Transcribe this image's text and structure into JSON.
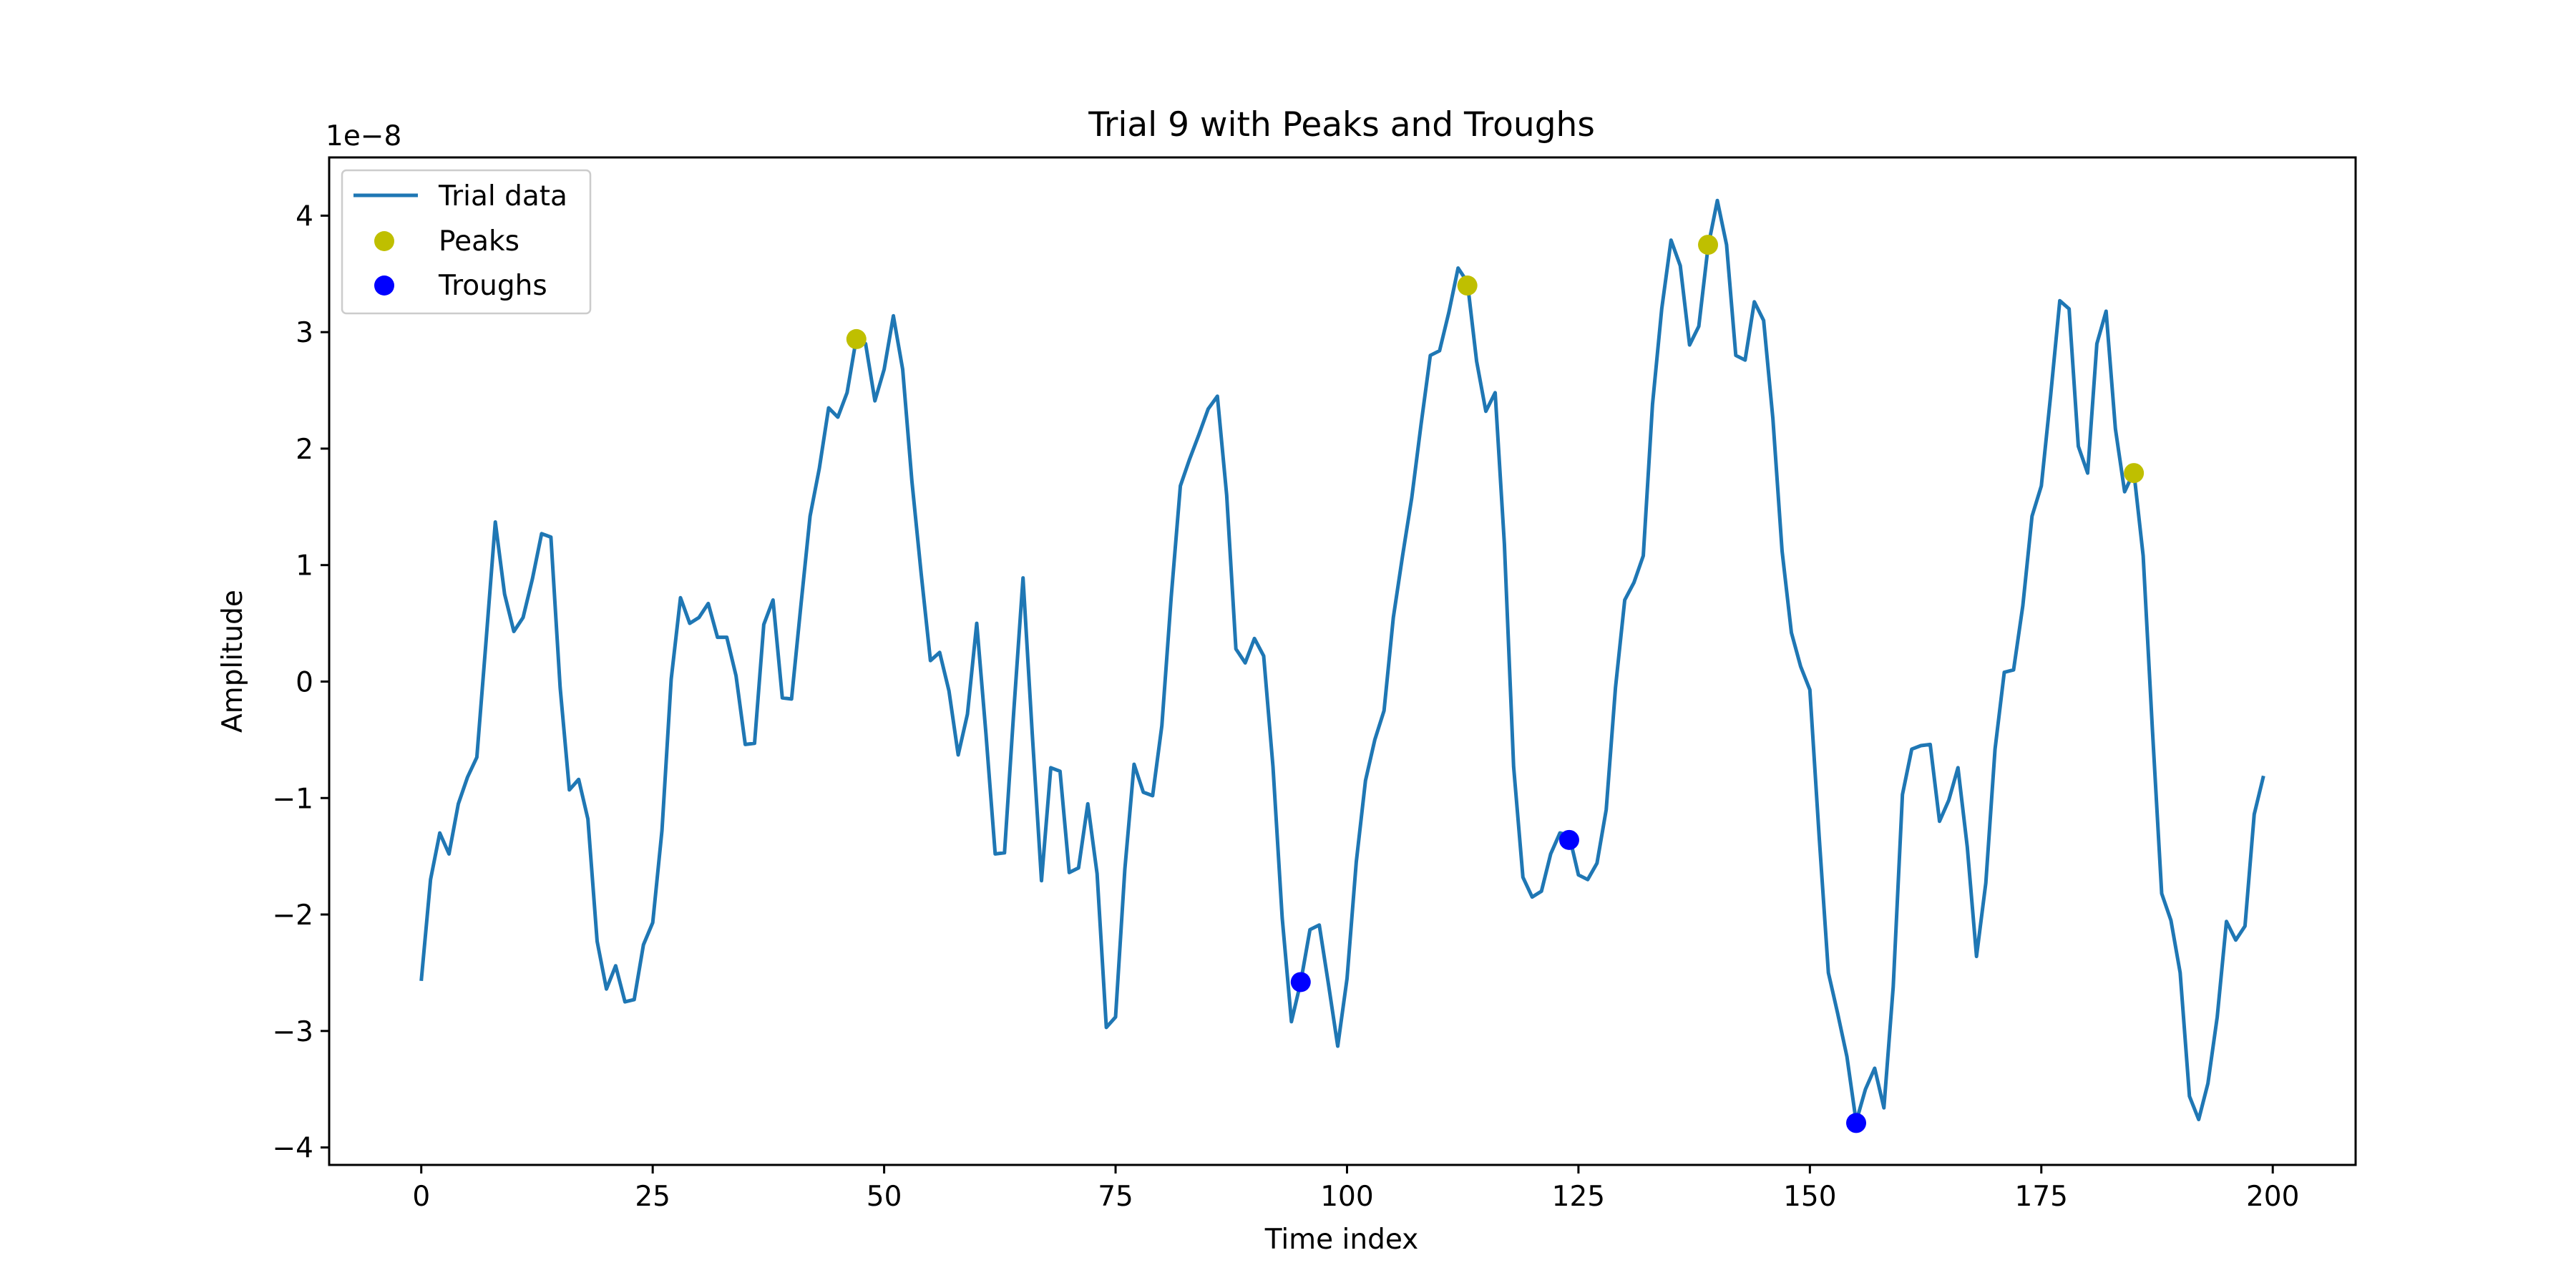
{
  "chart_data": {
    "type": "line",
    "title": "Trial 9 with Peaks and Troughs",
    "xlabel": "Time index",
    "ylabel": "Amplitude",
    "y_offset_label": "1e−8",
    "xlim": [
      -9.95,
      208.95
    ],
    "ylim": [
      -4.15,
      4.5
    ],
    "x_ticks": [
      0,
      25,
      50,
      75,
      100,
      125,
      150,
      175,
      200
    ],
    "x_tick_labels": [
      "0",
      "25",
      "50",
      "75",
      "100",
      "125",
      "150",
      "175",
      "200"
    ],
    "y_ticks": [
      -4,
      -3,
      -2,
      -1,
      0,
      1,
      2,
      3,
      4
    ],
    "y_tick_labels": [
      "−4",
      "−3",
      "−2",
      "−1",
      "0",
      "1",
      "2",
      "3",
      "4"
    ],
    "grid": false,
    "legend_position": "upper-left",
    "series": [
      {
        "name": "Trial data",
        "kind": "line",
        "color": "#1f77b4",
        "x_start": 0,
        "x_step": 1,
        "values": [
          -2.57,
          -1.7,
          -1.3,
          -1.48,
          -1.05,
          -0.82,
          -0.65,
          0.35,
          1.37,
          0.75,
          0.43,
          0.55,
          0.88,
          1.27,
          1.24,
          -0.05,
          -0.93,
          -0.84,
          -1.18,
          -2.23,
          -2.64,
          -2.44,
          -2.75,
          -2.73,
          -2.26,
          -2.07,
          -1.28,
          0.02,
          0.72,
          0.5,
          0.55,
          0.67,
          0.38,
          0.38,
          0.05,
          -0.54,
          -0.53,
          0.49,
          0.7,
          -0.14,
          -0.15,
          0.65,
          1.42,
          1.83,
          2.35,
          2.27,
          2.48,
          2.95,
          2.9,
          2.41,
          2.68,
          3.14,
          2.68,
          1.72,
          0.93,
          0.18,
          0.25,
          -0.08,
          -0.63,
          -0.28,
          0.5,
          -0.45,
          -1.48,
          -1.47,
          -0.26,
          0.89,
          -0.45,
          -1.71,
          -0.74,
          -0.77,
          -1.64,
          -1.6,
          -1.05,
          -1.65,
          -2.97,
          -2.88,
          -1.61,
          -0.71,
          -0.95,
          -0.98,
          -0.38,
          0.72,
          1.68,
          1.91,
          2.12,
          2.34,
          2.45,
          1.6,
          0.28,
          0.16,
          0.37,
          0.22,
          -0.73,
          -2.03,
          -2.92,
          -2.58,
          -2.13,
          -2.09,
          -2.6,
          -3.13,
          -2.55,
          -1.55,
          -0.85,
          -0.5,
          -0.25,
          0.55,
          1.08,
          1.58,
          2.21,
          2.8,
          2.84,
          3.17,
          3.55,
          3.43,
          2.75,
          2.32,
          2.48,
          1.18,
          -0.73,
          -1.68,
          -1.85,
          -1.8,
          -1.48,
          -1.3,
          -1.32,
          -1.66,
          -1.7,
          -1.56,
          -1.1,
          -0.05,
          0.7,
          0.85,
          1.08,
          2.38,
          3.2,
          3.79,
          3.57,
          2.89,
          3.05,
          3.73,
          4.13,
          3.75,
          2.8,
          2.76,
          3.26,
          3.1,
          2.26,
          1.12,
          0.42,
          0.13,
          -0.07,
          -1.33,
          -2.5,
          -2.85,
          -3.22,
          -3.78,
          -3.5,
          -3.32,
          -3.66,
          -2.62,
          -0.97,
          -0.58,
          -0.55,
          -0.54,
          -1.2,
          -1.02,
          -0.74,
          -1.42,
          -2.36,
          -1.73,
          -0.58,
          0.08,
          0.1,
          0.65,
          1.42,
          1.68,
          2.45,
          3.27,
          3.2,
          2.02,
          1.79,
          2.9,
          3.18,
          2.17,
          1.63,
          1.8,
          1.08,
          -0.41,
          -1.82,
          -2.05,
          -2.5,
          -3.56,
          -3.76,
          -3.45,
          -2.88,
          -2.06,
          -2.22,
          -2.1,
          -1.14,
          -0.81
        ]
      },
      {
        "name": "Peaks",
        "kind": "scatter",
        "color": "#bfbf00",
        "x": [
          47,
          113,
          139,
          185
        ],
        "y": [
          2.94,
          3.4,
          3.75,
          1.79
        ]
      },
      {
        "name": "Troughs",
        "kind": "scatter",
        "color": "#0000ff",
        "x": [
          95,
          124,
          155
        ],
        "y": [
          -2.58,
          -1.36,
          -3.79
        ]
      }
    ]
  }
}
